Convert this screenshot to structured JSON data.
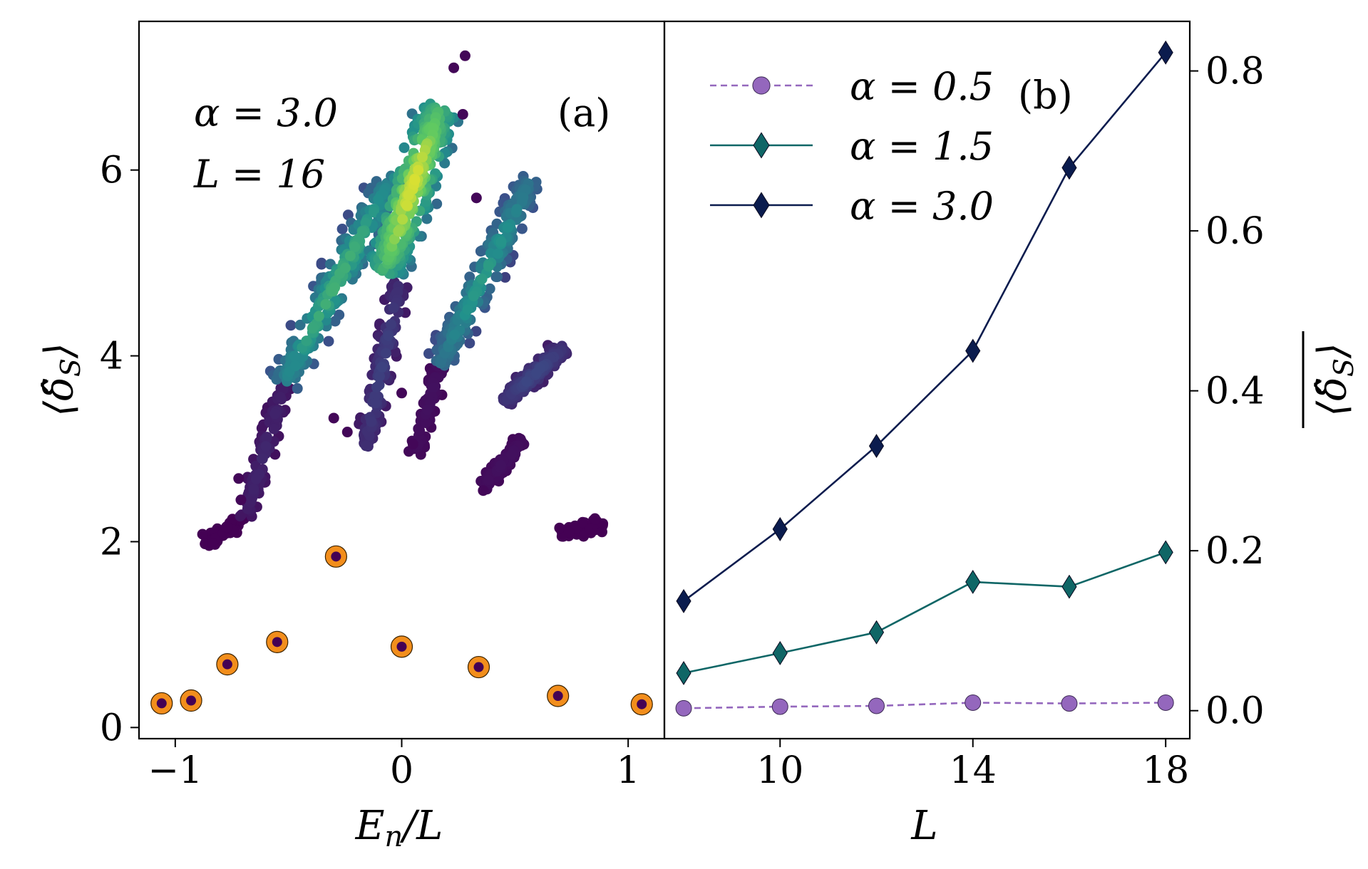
{
  "chart_data": [
    {
      "panel": "a",
      "type": "scatter",
      "panel_label": "(a)",
      "annotations": [
        "α = 3.0",
        "L = 16"
      ],
      "xlabel": "E_n/L",
      "ylabel": "⟨δ̂_S⟩",
      "xlim": [
        -1.16,
        1.16
      ],
      "ylim": [
        -0.12,
        7.6
      ],
      "xticks": [
        -1,
        0,
        1
      ],
      "xtick_labels": [
        "−1",
        "0",
        "1"
      ],
      "yticks": [
        0,
        2,
        4,
        6
      ],
      "ytick_labels": [
        "0",
        "2",
        "4",
        "6"
      ],
      "colormap": [
        "#440154",
        "#3b528b",
        "#21918c",
        "#5ec962",
        "#fde725"
      ],
      "clusters": [
        {
          "name": "left-lower-branch",
          "x0": -0.88,
          "y0": 1.98,
          "x1": -0.69,
          "y1": 2.25,
          "density": 0.0
        },
        {
          "name": "left-rising-branch",
          "x0": -0.69,
          "y0": 2.25,
          "x1": -0.52,
          "y1": 3.7,
          "density": 0.12
        },
        {
          "name": "left-main-lobe",
          "x0": -0.52,
          "y0": 3.7,
          "x1": -0.05,
          "y1": 5.9,
          "density": 0.65
        },
        {
          "name": "central-lower-stem",
          "x0": -0.16,
          "y0": 3.0,
          "x1": -0.01,
          "y1": 4.8,
          "density": 0.2
        },
        {
          "name": "central-main-lobe",
          "x0": -0.08,
          "y0": 4.9,
          "x1": 0.17,
          "y1": 6.7,
          "density": 0.95
        },
        {
          "name": "right-lower-stem",
          "x0": 0.06,
          "y0": 2.95,
          "x1": 0.2,
          "y1": 4.2,
          "density": 0.05
        },
        {
          "name": "right-middle-branch",
          "x0": 0.17,
          "y0": 3.9,
          "x1": 0.57,
          "y1": 5.9,
          "density": 0.55
        },
        {
          "name": "far-right-lower-branch",
          "x0": 0.36,
          "y0": 2.6,
          "x1": 0.54,
          "y1": 3.1,
          "density": 0.05
        },
        {
          "name": "far-right-upper-branch",
          "x0": 0.45,
          "y0": 3.5,
          "x1": 0.72,
          "y1": 4.1,
          "density": 0.22
        },
        {
          "name": "far-right-flat-branch",
          "x0": 0.7,
          "y0": 2.1,
          "x1": 0.9,
          "y1": 2.2,
          "density": 0.0
        }
      ],
      "scatter_points": [
        {
          "x": 0.23,
          "y": 7.1
        },
        {
          "x": 0.28,
          "y": 7.23
        },
        {
          "x": -0.3,
          "y": 3.33
        },
        {
          "x": -0.24,
          "y": 3.18
        },
        {
          "x": 0.05,
          "y": 3.05
        },
        {
          "x": 0.36,
          "y": 2.55
        },
        {
          "x": -0.71,
          "y": 2.45
        },
        {
          "x": -0.72,
          "y": 2.68
        },
        {
          "x": 0.0,
          "y": 3.6
        },
        {
          "x": 0.27,
          "y": 6.6
        },
        {
          "x": 0.33,
          "y": 5.7
        }
      ],
      "highlighted_points": [
        {
          "x": -1.06,
          "y": 0.26
        },
        {
          "x": -0.93,
          "y": 0.29
        },
        {
          "x": -0.77,
          "y": 0.68
        },
        {
          "x": -0.55,
          "y": 0.92
        },
        {
          "x": -0.29,
          "y": 1.84
        },
        {
          "x": 0.0,
          "y": 0.87
        },
        {
          "x": 0.34,
          "y": 0.65
        },
        {
          "x": 0.69,
          "y": 0.34
        },
        {
          "x": 1.06,
          "y": 0.25
        }
      ],
      "highlight_fill": "#f28e1c",
      "highlight_inner": "#440154"
    },
    {
      "panel": "b",
      "type": "line",
      "panel_label": "(b)",
      "xlabel": "L",
      "ylabel": "⟨δ̂_S⟩ (averaged)",
      "xlim": [
        7.6,
        18.5
      ],
      "ylim": [
        -0.035,
        0.862
      ],
      "xticks": [
        10,
        14,
        18
      ],
      "xtick_labels": [
        "10",
        "14",
        "18"
      ],
      "yticks": [
        0.0,
        0.2,
        0.4,
        0.6,
        0.8
      ],
      "ytick_labels": [
        "0.0",
        "0.2",
        "0.4",
        "0.6",
        "0.8"
      ],
      "x": [
        8,
        10,
        12,
        14,
        16,
        18
      ],
      "series": [
        {
          "name": "α = 0.5",
          "values": [
            0.003,
            0.005,
            0.006,
            0.01,
            0.009,
            0.01
          ],
          "color": "#9467bd",
          "marker": "circle",
          "linestyle": "dashed"
        },
        {
          "name": "α = 1.5",
          "values": [
            0.047,
            0.072,
            0.098,
            0.161,
            0.155,
            0.198
          ],
          "color": "#0f6666",
          "marker": "diamond",
          "linestyle": "solid"
        },
        {
          "name": "α = 3.0",
          "values": [
            0.137,
            0.227,
            0.331,
            0.45,
            0.679,
            0.823
          ],
          "color": "#0b1c4e",
          "marker": "diamond",
          "linestyle": "solid"
        }
      ],
      "legend_placement": "top-left"
    }
  ]
}
